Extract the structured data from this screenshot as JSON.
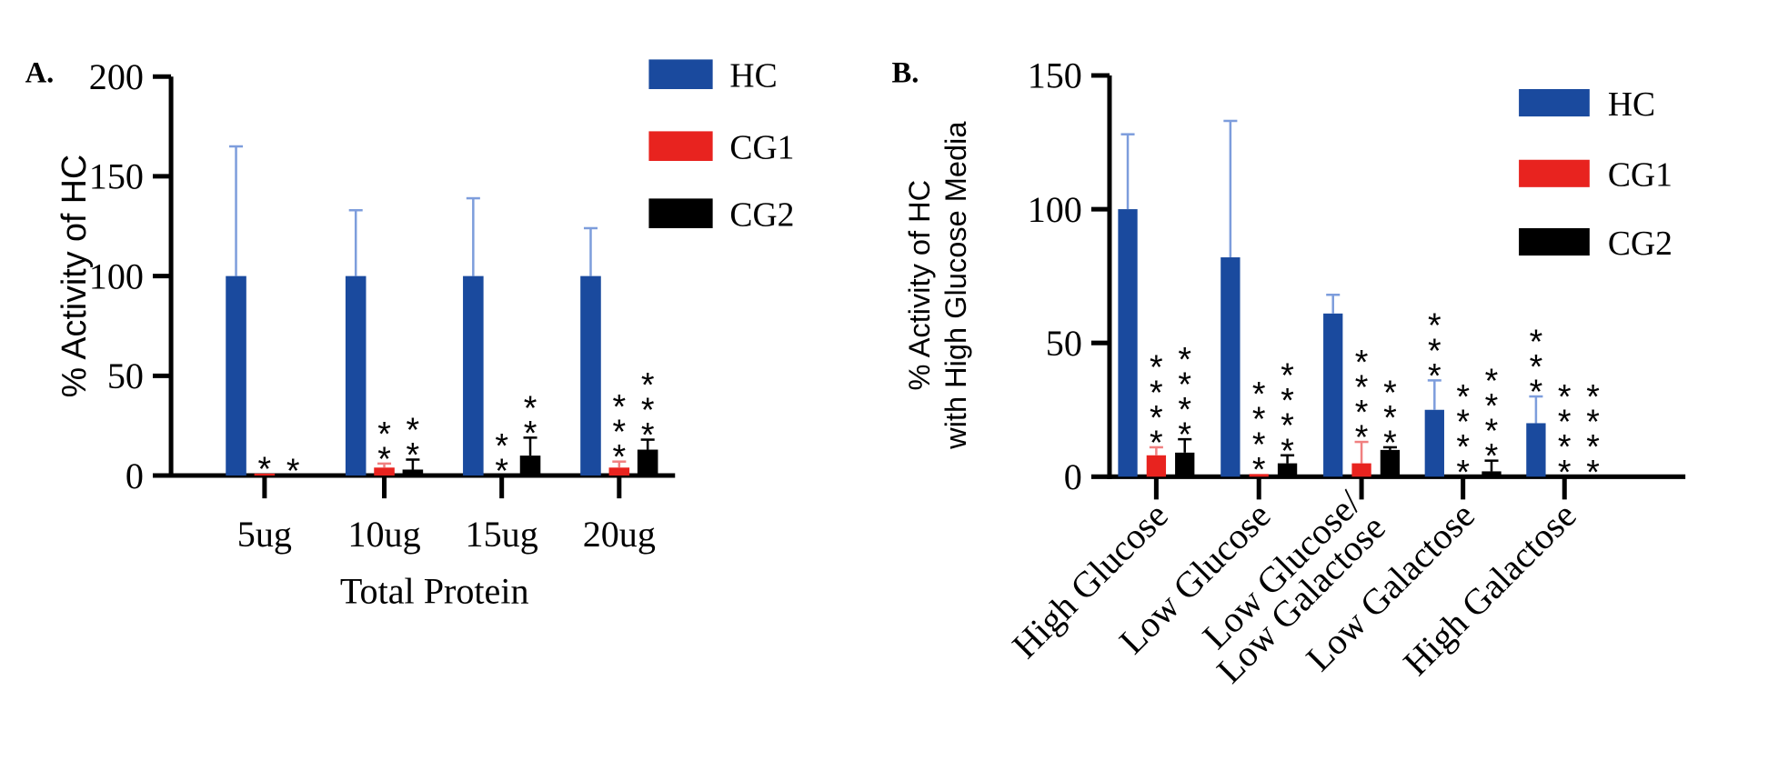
{
  "colors": {
    "HC": "#1a4a9e",
    "CG1": "#e8231f",
    "CG2": "#000000",
    "HC_err": "#7d9ddc",
    "CG1_err": "#f08080",
    "CG2_err": "#000000"
  },
  "chart_data": [
    {
      "panel_label": "A.",
      "type": "bar",
      "xlabel": "Total Protein",
      "ylabel": "% Activity of HC",
      "ylim": [
        0,
        200
      ],
      "yticks": [
        0,
        50,
        100,
        150,
        200
      ],
      "categories": [
        "5ug",
        "10ug",
        "15ug",
        "20ug"
      ],
      "legend": "top-right",
      "series": [
        {
          "name": "HC",
          "values": [
            100,
            100,
            100,
            100
          ],
          "error": [
            65,
            33,
            39,
            24
          ],
          "stars": [
            "",
            "",
            "",
            ""
          ]
        },
        {
          "name": "CG1",
          "values": [
            1,
            4,
            0,
            4
          ],
          "error": [
            0,
            2,
            0,
            3
          ],
          "stars": [
            "*",
            "**",
            "**",
            "***"
          ]
        },
        {
          "name": "CG2",
          "values": [
            0,
            3,
            10,
            13
          ],
          "error": [
            0,
            5,
            9,
            5
          ],
          "stars": [
            "*",
            "**",
            "**",
            "***"
          ]
        }
      ]
    },
    {
      "panel_label": "B.",
      "type": "bar",
      "xlabel": "",
      "ylabel": [
        "% Activity of HC",
        "with High Glucose Media"
      ],
      "ylim": [
        0,
        150
      ],
      "yticks": [
        0,
        50,
        100,
        150
      ],
      "categories": [
        [
          "High Glucose"
        ],
        [
          "Low Glucose"
        ],
        [
          "Low Glucose/",
          "Low Galactose"
        ],
        [
          "Low Galactose"
        ],
        [
          "High Galactose"
        ]
      ],
      "legend": "top-right",
      "series": [
        {
          "name": "HC",
          "values": [
            100,
            82,
            61,
            25,
            20
          ],
          "error": [
            28,
            51,
            7,
            11,
            10
          ],
          "stars": [
            "",
            "",
            "",
            "***",
            "***"
          ]
        },
        {
          "name": "CG1",
          "values": [
            8,
            1,
            5,
            0,
            0
          ],
          "error": [
            3,
            0,
            8,
            0,
            0
          ],
          "stars": [
            "****",
            "****",
            "****",
            "****",
            "****"
          ]
        },
        {
          "name": "CG2",
          "values": [
            9,
            5,
            10,
            2,
            0
          ],
          "error": [
            5,
            3,
            1,
            4,
            0
          ],
          "stars": [
            "****",
            "****",
            "***",
            "****",
            "****"
          ]
        }
      ]
    }
  ]
}
